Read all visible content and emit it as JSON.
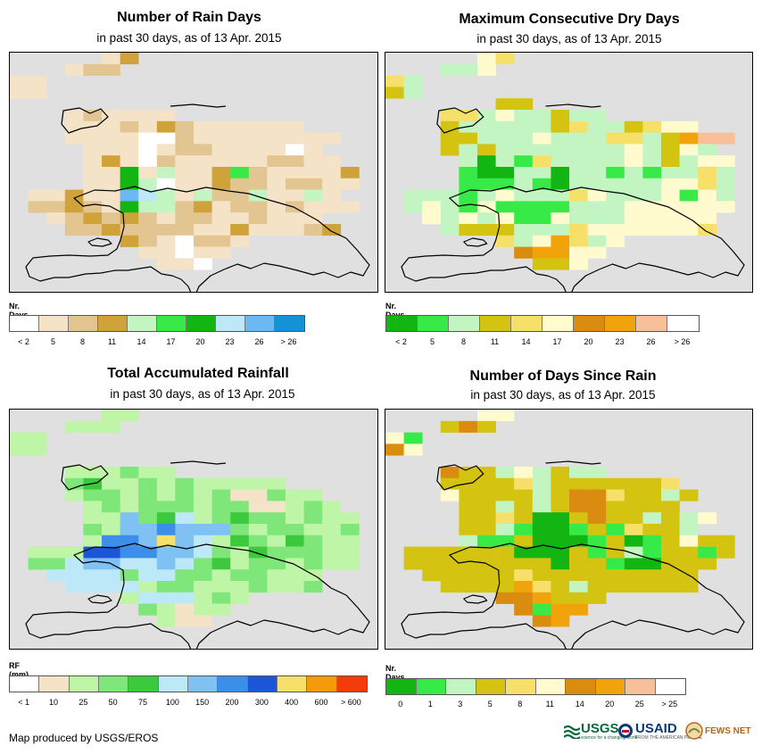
{
  "panels": [
    {
      "key": "rain_days",
      "title": "Number of Rain Days",
      "subtitle": "in past 30 days, as of 13 Apr. 2015",
      "legend_title": "Nr. Days",
      "legend_colors": [
        "#ffffff",
        "#f5e3c8",
        "#e3c592",
        "#cfa23a",
        "#c3f5c3",
        "#38ea48",
        "#13b513",
        "#bde8f7",
        "#6bb8f2",
        "#1591d6"
      ],
      "legend_labels": [
        "< 2",
        "5",
        "8",
        "11",
        "14",
        "17",
        "20",
        "23",
        "26",
        "> 26"
      ],
      "palette": {
        "a": "#ffffff",
        "b": "#f5e3c8",
        "c": "#e3c592",
        "d": "#cfa23a",
        "e": "#c3f5c3",
        "f": "#38ea48",
        "g": "#13b513",
        "h": "#bde8f7",
        "i": "#6bb8f2",
        "j": "#1591d6"
      },
      "grid": [
        ".....bd............",
        "...bcc.............",
        "bb.................",
        "bb.................",
        "...................",
        "...bcbbbb..........",
        "...bbbcbdcbbbbbb...",
        "...bbbbaacbbbbbbbb.",
        "....bbbabccbbbbab..",
        "....bdbacbbbbbccbb.",
        "....bbgbebbdfcbbbbd",
        "....bbgeabbdccbccbb",
        ".bbdbbihebeccebbeb.",
        ".ccdcbgeecdbccbcbbb",
        "..bcdcdcbccbbcbbb..",
        "...ccdccccbbdbbbcd.",
        "......dcbaccb......",
        ".......bbabb.......",
        "........bba........"
      ]
    },
    {
      "key": "dry_days",
      "title": "Maximum Consecutive Dry Days",
      "subtitle": "in past 30 days, as of 13 Apr. 2015",
      "legend_title": "Nr. Days",
      "legend_colors": [
        "#13b513",
        "#38ea48",
        "#c3f5c3",
        "#d4c411",
        "#f7e06a",
        "#fffbcf",
        "#d98c0f",
        "#f0a30a",
        "#f7c09a",
        "#ffffff"
      ],
      "legend_labels": [
        "< 2",
        "5",
        "8",
        "11",
        "14",
        "17",
        "20",
        "23",
        "26",
        "> 26"
      ],
      "palette": {
        "a": "#13b513",
        "b": "#38ea48",
        "c": "#c3f5c3",
        "d": "#d4c411",
        "e": "#f7e06a",
        "f": "#fffbcf",
        "g": "#d98c0f",
        "h": "#f0a30a",
        "i": "#f7c09a",
        "j": "#ffffff"
      },
      "grid": [
        ".....fe............",
        "...ccf.............",
        "ec.................",
        "dc.................",
        "......dd...........",
        "...eecfccdcc.......",
        "...dcccccdeccdeff..",
        "...ddcccfccceecdhii",
        "...dcdcccccccfcdfc.",
        "....cacbeccccfcdcff",
        "....baaccaccbcbccec",
        "....bbbcbacccccffec",
        ".cccbcfcccefcccfbfc",
        ".cfcbfbbbbcccffffff",
        "..fcfcfbbfcccfffff.",
        "...cdddccceffffffe.",
        "......ecfhecf......",
        ".......ghhff.......",
        "........ddf........"
      ]
    },
    {
      "key": "rainfall",
      "title": "Total Accumulated Rainfall",
      "subtitle": "in past 30 days, as of 13 Apr. 2015",
      "legend_title": "RF (mm)",
      "legend_colors": [
        "#ffffff",
        "#f5e3c8",
        "#bff5a6",
        "#7fe67a",
        "#3dc93d",
        "#bde8f7",
        "#7fc1f2",
        "#3d8ee8",
        "#1a56d6",
        "#f7e06a",
        "#f59b0a",
        "#f53b0a"
      ],
      "legend_labels": [
        "< 1",
        "10",
        "25",
        "50",
        "75",
        "100",
        "150",
        "200",
        "300",
        "400",
        "600",
        "> 600"
      ],
      "palette": {
        "a": "#ffffff",
        "b": "#f5e3c8",
        "c": "#bff5a6",
        "d": "#7fe67a",
        "e": "#3dc93d",
        "f": "#bde8f7",
        "g": "#7fc1f2",
        "h": "#3d8ee8",
        "i": "#1a56d6",
        "j": "#f7e06a",
        "k": "#f59b0a",
        "l": "#f53b0a"
      },
      "grid": [
        ".....cc............",
        "...ccc.............",
        "cc.................",
        "cc.................",
        "...................",
        "...cccdcc..........",
        "...deccdcdccccc....",
        "...cddcdcdcdbbdcc..",
        "....cdcdddcddbbcdc.",
        "....ccgdefcdeddcdcc",
        "....dcgghgggdcddccd",
        "....chhgjgfcedcedcc",
        ".ccciihhggfdcedddcc",
        ".ddfggffgfdecddcdcc",
        "..ffffdffddcddccc..",
        "...ffffcddcccdccd..",
        "......cfffcdc......",
        ".......dcbcc.......",
        "........cbb........"
      ]
    },
    {
      "key": "days_since_rain",
      "title": "Number of Days Since Rain",
      "subtitle": "in past 30 days, as of 13 Apr. 2015",
      "legend_title": "Nr. Days",
      "legend_colors": [
        "#13b513",
        "#38ea48",
        "#c3f5c3",
        "#d4c411",
        "#f7e06a",
        "#fffbcf",
        "#d98c0f",
        "#f0a30a",
        "#f7c09a",
        "#ffffff"
      ],
      "legend_labels": [
        "0",
        "1",
        "3",
        "5",
        "8",
        "11",
        "14",
        "20",
        "25",
        "> 25"
      ],
      "palette": {
        "a": "#13b513",
        "b": "#38ea48",
        "c": "#c3f5c3",
        "d": "#d4c411",
        "e": "#f7e06a",
        "f": "#fffbcf",
        "g": "#d98c0f",
        "h": "#f0a30a",
        "i": "#f7c09a",
        "j": "#ffffff"
      },
      "grid": [
        ".....ff............",
        "...dgd.............",
        "fb.................",
        "gf.................",
        "...................",
        "...gddcfcdcc.......",
        "...ddddecdddddde...",
        "...fddddcdggeddcd..",
        "....ddcdcdggdddd...",
        "....ddedaadgddcdcf.",
        "....ddcbaabdbeddc..",
        "....cbbdaaabdabdfdd",
        ".ddddddaaadbdcbddbd",
        ".ddddddddaddbaaddd.",
        "..dddddeddddddddd..",
        "...ddddhedcdddddd..",
        "......gghddd.......",
        ".......gbhh........",
        "........gh........."
      ]
    }
  ],
  "footer": {
    "credit": "Map produced by USGS/EROS",
    "usgs": "USGS",
    "usgs_tag": "science for a changing world",
    "usaid": "USAID",
    "usaid_tag": "FROM THE AMERICAN PEOPLE",
    "fewsnet": "FEWS NET"
  }
}
